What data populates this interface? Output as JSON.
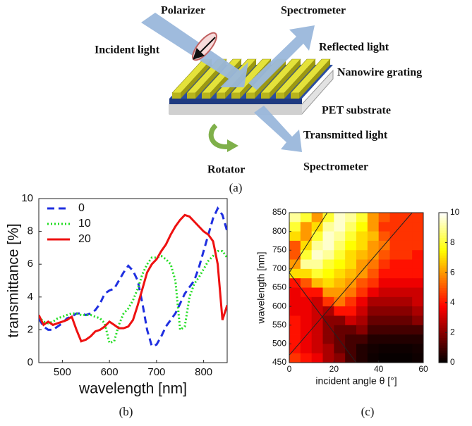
{
  "diagram": {
    "labels": {
      "polarizer": "Polarizer",
      "spectrometer_top": "Spectrometer",
      "incident": "Incident light",
      "reflected": "Reflected light",
      "grating": "Nanowire grating",
      "substrate": "PET substrate",
      "transmitted": "Transmitted light",
      "rotator": "Rotator",
      "spectrometer_bottom": "Spectrometer"
    },
    "caption": "(a)"
  },
  "chart_data": [
    {
      "type": "line",
      "caption": "(b)",
      "xlabel": "wavelength [nm]",
      "ylabel": "transmittance [%]",
      "legend": "upper left",
      "x": [
        450,
        460,
        470,
        480,
        490,
        500,
        510,
        520,
        530,
        540,
        550,
        560,
        570,
        580,
        590,
        600,
        610,
        620,
        630,
        640,
        650,
        660,
        670,
        680,
        690,
        700,
        710,
        720,
        730,
        740,
        750,
        760,
        770,
        780,
        790,
        800,
        810,
        820,
        830,
        840,
        850
      ],
      "xlim": [
        450,
        850
      ],
      "xticks": [
        500,
        600,
        700,
        800
      ],
      "ylim": [
        0,
        10
      ],
      "yticks": [
        0,
        2,
        4,
        6,
        8,
        10
      ],
      "series": [
        {
          "name": "0",
          "color": "#1f2fe0",
          "dash": "10 6",
          "values": [
            2.7,
            2.2,
            2.0,
            2.0,
            2.2,
            2.4,
            2.7,
            2.8,
            3.0,
            3.0,
            2.9,
            3.0,
            3.2,
            3.6,
            4.2,
            4.4,
            4.5,
            5.0,
            5.5,
            5.9,
            5.6,
            5.0,
            3.6,
            2.0,
            1.0,
            1.1,
            1.6,
            2.2,
            2.6,
            3.0,
            3.6,
            4.2,
            4.6,
            5.0,
            5.8,
            6.8,
            7.8,
            8.8,
            9.4,
            9.0,
            8.0
          ]
        },
        {
          "name": "10",
          "color": "#22dd22",
          "dash": "2 3",
          "values": [
            2.8,
            2.5,
            2.4,
            2.5,
            2.7,
            2.8,
            2.9,
            3.0,
            3.0,
            2.9,
            2.9,
            2.9,
            2.8,
            2.7,
            2.4,
            1.2,
            1.3,
            2.3,
            3.0,
            3.3,
            3.8,
            4.5,
            5.4,
            6.0,
            6.4,
            6.4,
            6.5,
            6.3,
            6.0,
            5.0,
            2.0,
            2.2,
            4.0,
            4.8,
            5.2,
            5.7,
            6.2,
            6.5,
            6.8,
            6.8,
            6.4
          ]
        },
        {
          "name": "20",
          "color": "#ee1111",
          "dash": "none",
          "values": [
            2.9,
            2.3,
            2.5,
            2.3,
            2.4,
            2.5,
            2.6,
            2.8,
            2.0,
            1.3,
            1.4,
            1.6,
            1.9,
            2.0,
            2.2,
            2.5,
            2.3,
            2.1,
            2.1,
            2.2,
            2.6,
            3.5,
            4.5,
            5.5,
            6.0,
            6.3,
            6.8,
            7.2,
            7.8,
            8.3,
            8.7,
            9.0,
            8.9,
            8.6,
            8.3,
            8.0,
            7.8,
            7.4,
            6.0,
            2.6,
            3.5
          ]
        }
      ]
    },
    {
      "type": "heatmap",
      "caption": "(c)",
      "xlabel": "incident angle θ [°]",
      "ylabel": "wavelength [nm]",
      "colormap": "hot",
      "xlim": [
        0,
        60
      ],
      "xticks": [
        0,
        20,
        40,
        60
      ],
      "ylim": [
        450,
        850
      ],
      "yticks": [
        450,
        500,
        550,
        600,
        650,
        700,
        750,
        800,
        850
      ],
      "x": [
        2.5,
        7.5,
        12.5,
        17.5,
        22.5,
        27.5,
        32.5,
        37.5,
        42.5,
        47.5,
        52.5,
        57.5
      ],
      "y": [
        837.5,
        812.5,
        787.5,
        762.5,
        737.5,
        712.5,
        687.5,
        662.5,
        637.5,
        612.5,
        587.5,
        562.5,
        537.5,
        512.5,
        487.5,
        462.5
      ],
      "z": [
        [
          9,
          8,
          6,
          8,
          9.5,
          9,
          8,
          6,
          5,
          4.5,
          4.5,
          4.5
        ],
        [
          8,
          6,
          7,
          9,
          9.5,
          8.5,
          7.5,
          6,
          4.5,
          4.5,
          4.5,
          4.5
        ],
        [
          7,
          6,
          8,
          9.5,
          9,
          8,
          7,
          6.5,
          5,
          4.5,
          4.5,
          4.5
        ],
        [
          5,
          7,
          9,
          9.5,
          8.5,
          7.5,
          7,
          6,
          5.5,
          4.5,
          4.5,
          4.5
        ],
        [
          5,
          8,
          9.5,
          9,
          8,
          7,
          6.5,
          6,
          5,
          4.5,
          4.5,
          4
        ],
        [
          6,
          9,
          9,
          8,
          7.5,
          7,
          6,
          5.5,
          4.5,
          4,
          4,
          4
        ],
        [
          7,
          7,
          8,
          7.5,
          7,
          6.5,
          6,
          5,
          4,
          4,
          4,
          4
        ],
        [
          4,
          5,
          6.5,
          7,
          6.5,
          6,
          5,
          4.5,
          3.5,
          3.5,
          3.5,
          3.5
        ],
        [
          3.5,
          4,
          4,
          6,
          6,
          5.5,
          4.5,
          3.5,
          3,
          3,
          3,
          3
        ],
        [
          3.5,
          3.5,
          3,
          4.5,
          5.5,
          4.5,
          3.5,
          2.5,
          2.5,
          2.5,
          2.5,
          3
        ],
        [
          3.5,
          3.5,
          3,
          2.5,
          4,
          4,
          3,
          2,
          2,
          2,
          2,
          2.5
        ],
        [
          4,
          3.5,
          3,
          2,
          2,
          3,
          2.5,
          1.5,
          1.5,
          1.5,
          1.5,
          2
        ],
        [
          4,
          3.5,
          3,
          2,
          1.5,
          1.5,
          2,
          1,
          1,
          1,
          1,
          1
        ],
        [
          4,
          3.5,
          3,
          2,
          1.5,
          1,
          1,
          0.5,
          0.5,
          0.5,
          0.5,
          0.5
        ],
        [
          4,
          3.5,
          3,
          2.5,
          1.5,
          1,
          0.5,
          0.3,
          0.2,
          0.2,
          0.2,
          0.3
        ],
        [
          4.5,
          4,
          3.5,
          2.5,
          2,
          1,
          0.5,
          0.2,
          0.1,
          0.1,
          0.1,
          0.2
        ]
      ],
      "colorbar": {
        "lim": [
          0,
          10
        ],
        "ticks": [
          0,
          2,
          4,
          6,
          8,
          10
        ]
      }
    }
  ]
}
